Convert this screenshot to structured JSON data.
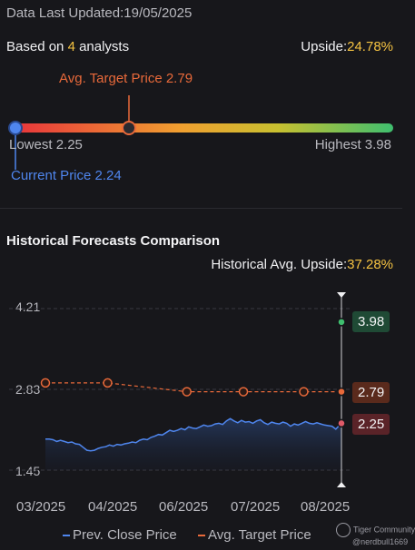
{
  "header": {
    "updated_label": "Data Last Updated:",
    "updated_date": "19/05/2025",
    "based_prefix": "Based on ",
    "analyst_count": "4",
    "based_suffix": " analysts",
    "upside_label": "Upside:",
    "upside_value": "24.78%"
  },
  "range": {
    "avg_target_label": "Avg. Target Price 2.79",
    "lowest_label": "Lowest 2.25",
    "highest_label": "Highest 3.98",
    "current_label": "Current Price 2.24",
    "lowest": 2.25,
    "highest": 3.98,
    "avg_target": 2.79,
    "current": 2.24,
    "colors": {
      "start": "#e8323c",
      "mid": "#f0a030",
      "end": "#3fbf6f"
    }
  },
  "historical": {
    "title": "Historical Forecasts Comparison",
    "upside_label": "Historical Avg. Upside:",
    "upside_value": "37.28%"
  },
  "chart_data": {
    "type": "line",
    "title": "",
    "xlabel": "",
    "ylabel": "",
    "yticks": [
      "4.21",
      "2.83",
      "1.45"
    ],
    "ylim": [
      1.45,
      4.21
    ],
    "xticks": [
      "03/2025",
      "04/2025",
      "06/2025",
      "07/2025",
      "08/2025"
    ],
    "grid": true,
    "legend_position": "bottom",
    "series": [
      {
        "name": "Prev. Close Price",
        "color": "#4f86ee",
        "x": [
          0,
          2,
          4,
          6,
          8,
          10,
          12,
          14,
          16,
          18,
          20,
          22,
          24,
          26,
          28,
          30,
          32,
          34,
          36,
          38,
          40,
          42,
          44,
          46,
          48,
          50,
          52,
          54,
          56,
          58,
          60,
          62,
          64,
          66,
          68,
          70,
          72,
          74,
          76,
          78,
          80,
          82,
          84,
          86,
          88,
          90,
          92,
          94,
          96,
          98,
          100,
          102,
          104,
          106,
          108,
          110,
          112,
          114,
          116,
          118,
          120,
          122,
          124,
          126,
          128,
          130,
          132,
          134,
          136,
          138,
          140,
          142,
          144,
          146,
          148,
          150,
          152,
          154,
          156,
          157
        ],
        "values": [
          1.98,
          1.98,
          1.97,
          1.94,
          1.96,
          1.94,
          1.92,
          1.93,
          1.9,
          1.89,
          1.84,
          1.79,
          1.78,
          1.79,
          1.82,
          1.84,
          1.85,
          1.88,
          1.86,
          1.89,
          1.88,
          1.9,
          1.91,
          1.93,
          1.92,
          1.96,
          1.98,
          1.97,
          2.01,
          2.03,
          2.06,
          2.05,
          2.09,
          2.13,
          2.11,
          2.13,
          2.16,
          2.14,
          2.19,
          2.17,
          2.16,
          2.19,
          2.22,
          2.2,
          2.21,
          2.24,
          2.25,
          2.23,
          2.29,
          2.33,
          2.29,
          2.26,
          2.3,
          2.27,
          2.28,
          2.25,
          2.29,
          2.31,
          2.26,
          2.23,
          2.27,
          2.25,
          2.24,
          2.27,
          2.25,
          2.2,
          2.24,
          2.22,
          2.25,
          2.28,
          2.25,
          2.24,
          2.26,
          2.24,
          2.22,
          2.21,
          2.2,
          2.15,
          2.22,
          2.24
        ]
      },
      {
        "name": "Avg. Target Price",
        "color": "#e8693a",
        "x": [
          0,
          33,
          75,
          105,
          137,
          157
        ],
        "values": [
          2.94,
          2.94,
          2.79,
          2.79,
          2.79,
          2.79
        ]
      }
    ],
    "end_points": [
      {
        "label": "3.98",
        "value": 3.98,
        "color": "#3fbf6f",
        "bg": "#1f4a35"
      },
      {
        "label": "2.79",
        "value": 2.79,
        "color": "#e8693a",
        "bg": "#5a2a1c"
      },
      {
        "label": "2.25",
        "value": 2.25,
        "color": "#e05a68",
        "bg": "#5a2328"
      }
    ]
  },
  "legend": {
    "prev_close": "Prev. Close Price",
    "avg_target": "Avg. Target Price"
  },
  "watermark": {
    "brand": "Tiger Community",
    "handle": "@nerdbull1669"
  }
}
